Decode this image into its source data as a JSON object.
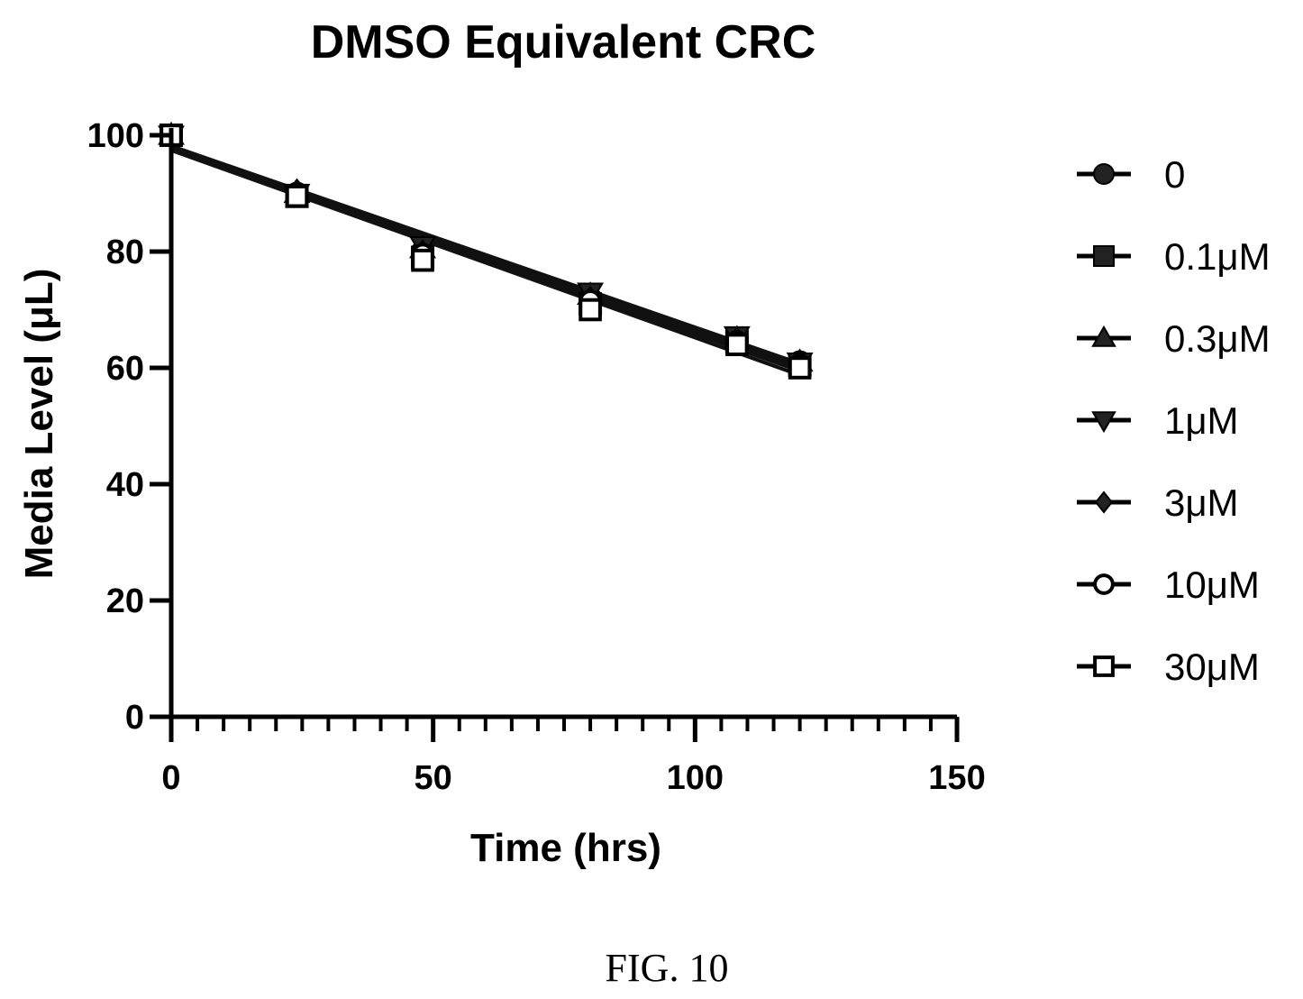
{
  "figure_caption": "FIG. 10",
  "chart_data": {
    "type": "line",
    "title": "DMSO Equivalent CRC",
    "xlabel": "Time (hrs)",
    "ylabel": "Media Level (μL)",
    "xlim": [
      0,
      150
    ],
    "ylim": [
      0,
      100
    ],
    "xticks": [
      "0",
      "50",
      "100",
      "150"
    ],
    "yticks": [
      "0",
      "20",
      "40",
      "60",
      "80",
      "100"
    ],
    "x_minor_step": 5,
    "grid": false,
    "legend_position": "right",
    "fit": "linear",
    "x": [
      0,
      24,
      48,
      80,
      108,
      120
    ],
    "series": [
      {
        "name": "0",
        "marker": "circle-filled",
        "values": [
          100,
          90,
          80,
          72,
          65,
          61
        ]
      },
      {
        "name": "0.1μM",
        "marker": "square-filled",
        "values": [
          100,
          89.5,
          79,
          71,
          64.5,
          60.5
        ]
      },
      {
        "name": "0.3μM",
        "marker": "triangle-up-filled",
        "values": [
          100,
          90,
          80.5,
          72.5,
          65,
          61
        ]
      },
      {
        "name": "1μM",
        "marker": "triangle-down-filled",
        "values": [
          100,
          90,
          81,
          73,
          65.5,
          61
        ]
      },
      {
        "name": "3μM",
        "marker": "diamond-filled",
        "values": [
          100,
          90.5,
          80,
          72,
          65,
          60.5
        ]
      },
      {
        "name": "10μM",
        "marker": "circle-open",
        "values": [
          100,
          90,
          79.5,
          71.5,
          64.5,
          60.5
        ]
      },
      {
        "name": "30μM",
        "marker": "square-open",
        "values": [
          100,
          89.5,
          78.5,
          70,
          64,
          60
        ]
      }
    ]
  }
}
